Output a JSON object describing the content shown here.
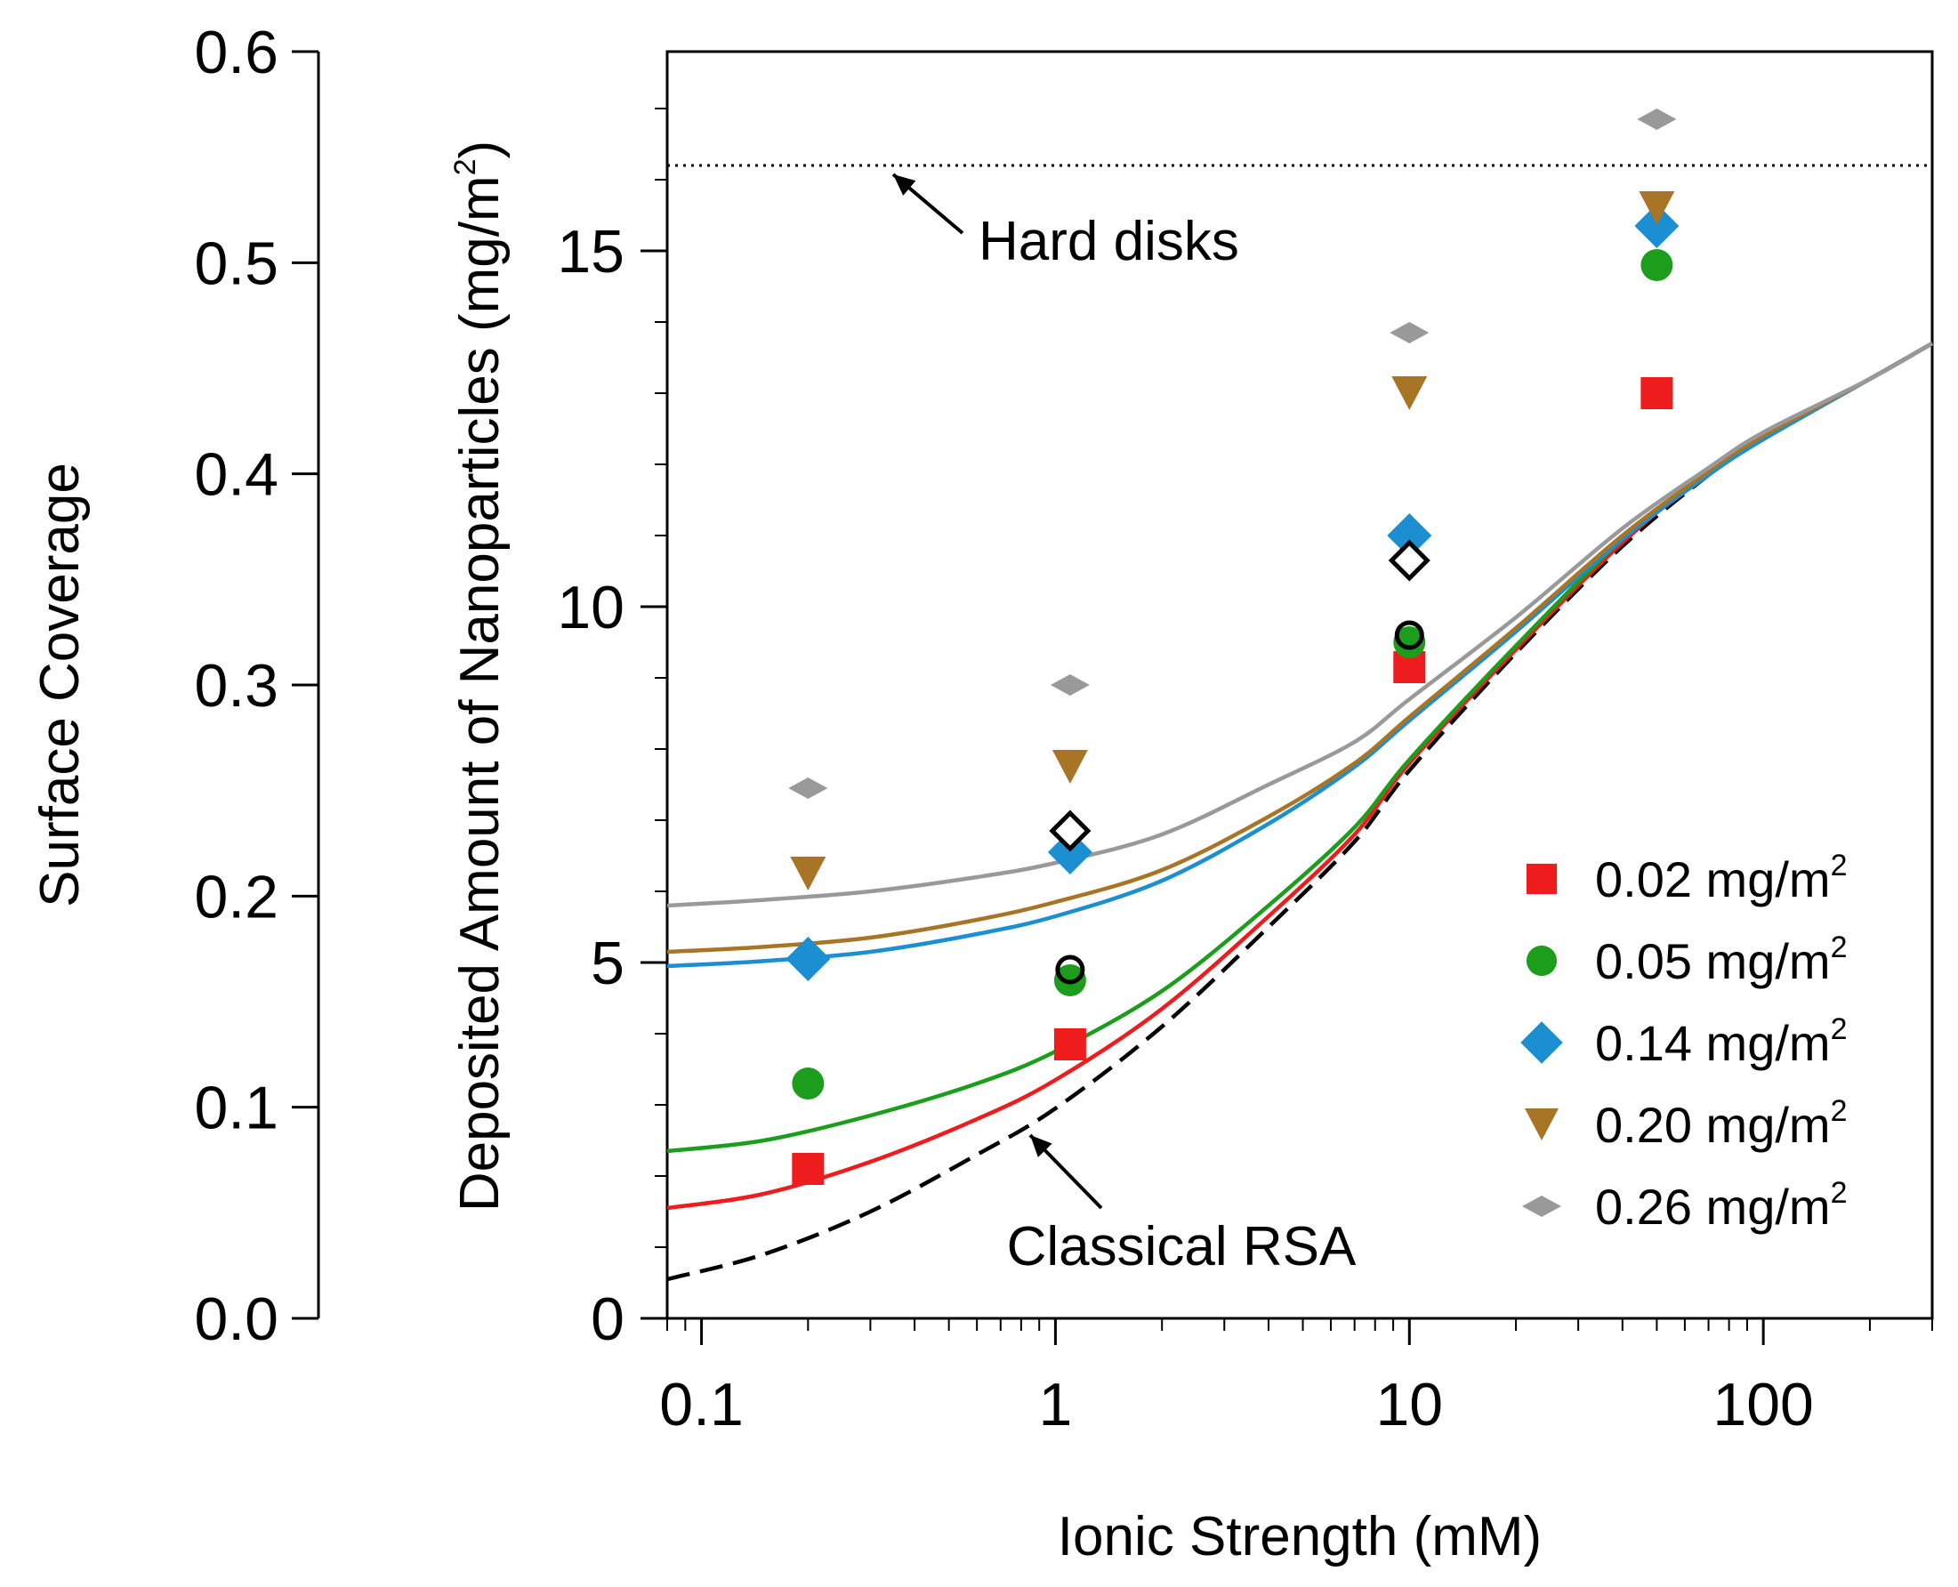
{
  "chart_data": {
    "type": "scatter",
    "title": "",
    "xlabel": "Ionic Strength (mM)",
    "ylabel_main": "Deposited Amount of Nanoparticles (mg/m",
    "ylabel_sup": "2",
    "ylabel_close": ")",
    "ylabel_secondary": "Surface Coverage",
    "x_scale": "log",
    "xlim": [
      0.08,
      300
    ],
    "ylim": [
      0,
      17.8
    ],
    "secondary_ylim": [
      0.0,
      0.6
    ],
    "x_ticks": [
      0.1,
      1,
      10,
      100
    ],
    "x_tick_labels": [
      "0.1",
      "1",
      "10",
      "100"
    ],
    "y_ticks": [
      0,
      5,
      10,
      15
    ],
    "y_tick_labels": [
      "0",
      "5",
      "10",
      "15"
    ],
    "secondary_ticks": [
      0.0,
      0.1,
      0.2,
      0.3,
      0.4,
      0.5,
      0.6
    ],
    "secondary_tick_labels": [
      "0.0",
      "0.1",
      "0.2",
      "0.3",
      "0.4",
      "0.5",
      "0.6"
    ],
    "hard_disk_level": 16.2,
    "annotations": {
      "hard_disks": "Hard disks",
      "classical_rsa": "Classical RSA"
    },
    "series": [
      {
        "name": "0.02 mg/m",
        "sup": "2",
        "marker": "square",
        "color": "#ee1c1c",
        "points": [
          {
            "x": 0.2,
            "y": 2.1
          },
          {
            "x": 1.1,
            "y": 3.85
          },
          {
            "x": 10,
            "y": 9.15
          },
          {
            "x": 50,
            "y": 13.0
          }
        ],
        "curve": [
          [
            0.08,
            1.55
          ],
          [
            0.15,
            1.75
          ],
          [
            0.3,
            2.2
          ],
          [
            0.6,
            2.8
          ],
          [
            1,
            3.35
          ],
          [
            2,
            4.35
          ],
          [
            4,
            5.65
          ],
          [
            7,
            6.8
          ],
          [
            10,
            7.8
          ],
          [
            20,
            9.4
          ],
          [
            40,
            10.9
          ],
          [
            70,
            11.9
          ],
          [
            100,
            12.4
          ],
          [
            200,
            13.2
          ],
          [
            300,
            13.7
          ]
        ]
      },
      {
        "name": "0.05 mg/m",
        "sup": "2",
        "marker": "circle",
        "color": "#1c9e1c",
        "points": [
          {
            "x": 0.2,
            "y": 3.3
          },
          {
            "x": 1.1,
            "y": 4.75
          },
          {
            "x": 10,
            "y": 9.5
          },
          {
            "x": 50,
            "y": 14.8
          }
        ],
        "curve": [
          [
            0.08,
            2.35
          ],
          [
            0.15,
            2.5
          ],
          [
            0.3,
            2.85
          ],
          [
            0.6,
            3.3
          ],
          [
            1,
            3.75
          ],
          [
            2,
            4.6
          ],
          [
            4,
            5.8
          ],
          [
            7,
            6.9
          ],
          [
            10,
            7.85
          ],
          [
            20,
            9.45
          ],
          [
            40,
            10.95
          ],
          [
            70,
            11.9
          ],
          [
            100,
            12.4
          ],
          [
            200,
            13.2
          ],
          [
            300,
            13.7
          ]
        ]
      },
      {
        "name": "0.14 mg/m",
        "sup": "2",
        "marker": "diamond",
        "color": "#1b8fd1",
        "points": [
          {
            "x": 0.2,
            "y": 5.05
          },
          {
            "x": 1.1,
            "y": 6.55
          },
          {
            "x": 10,
            "y": 11.0
          },
          {
            "x": 50,
            "y": 15.35
          }
        ],
        "curve": [
          [
            0.08,
            4.95
          ],
          [
            0.15,
            5.02
          ],
          [
            0.3,
            5.15
          ],
          [
            0.6,
            5.4
          ],
          [
            1,
            5.65
          ],
          [
            2,
            6.15
          ],
          [
            4,
            6.95
          ],
          [
            7,
            7.75
          ],
          [
            10,
            8.4
          ],
          [
            20,
            9.65
          ],
          [
            40,
            10.95
          ],
          [
            70,
            11.85
          ],
          [
            100,
            12.35
          ],
          [
            200,
            13.2
          ],
          [
            300,
            13.7
          ]
        ]
      },
      {
        "name": "0.20 mg/m",
        "sup": "2",
        "marker": "triangle-down",
        "color": "#a87526",
        "points": [
          {
            "x": 0.2,
            "y": 6.25
          },
          {
            "x": 1.1,
            "y": 7.75
          },
          {
            "x": 10,
            "y": 13.0
          },
          {
            "x": 50,
            "y": 15.6
          }
        ],
        "curve": [
          [
            0.08,
            5.15
          ],
          [
            0.15,
            5.22
          ],
          [
            0.3,
            5.35
          ],
          [
            0.6,
            5.6
          ],
          [
            1,
            5.85
          ],
          [
            2,
            6.3
          ],
          [
            4,
            7.05
          ],
          [
            7,
            7.8
          ],
          [
            10,
            8.45
          ],
          [
            20,
            9.7
          ],
          [
            40,
            11.0
          ],
          [
            70,
            11.9
          ],
          [
            100,
            12.4
          ],
          [
            200,
            13.2
          ],
          [
            300,
            13.7
          ]
        ]
      },
      {
        "name": "0.26 mg/m",
        "sup": "2",
        "marker": "flat-diamond",
        "color": "#999999",
        "points": [
          {
            "x": 0.2,
            "y": 7.45
          },
          {
            "x": 1.1,
            "y": 8.9
          },
          {
            "x": 10,
            "y": 13.85
          },
          {
            "x": 50,
            "y": 16.85
          }
        ],
        "curve": [
          [
            0.08,
            5.8
          ],
          [
            0.15,
            5.88
          ],
          [
            0.3,
            6.0
          ],
          [
            0.6,
            6.2
          ],
          [
            1,
            6.4
          ],
          [
            2,
            6.8
          ],
          [
            4,
            7.5
          ],
          [
            7,
            8.1
          ],
          [
            10,
            8.7
          ],
          [
            20,
            9.85
          ],
          [
            40,
            11.1
          ],
          [
            70,
            11.95
          ],
          [
            100,
            12.45
          ],
          [
            200,
            13.2
          ],
          [
            300,
            13.7
          ]
        ]
      }
    ],
    "reference_curve": {
      "name": "Classical RSA",
      "color": "#000000",
      "curve": [
        [
          0.08,
          0.55
        ],
        [
          0.15,
          0.9
        ],
        [
          0.3,
          1.5
        ],
        [
          0.6,
          2.3
        ],
        [
          1,
          2.95
        ],
        [
          2,
          4.1
        ],
        [
          4,
          5.5
        ],
        [
          7,
          6.7
        ],
        [
          10,
          7.7
        ],
        [
          20,
          9.35
        ],
        [
          40,
          10.85
        ],
        [
          70,
          11.85
        ],
        [
          100,
          12.4
        ],
        [
          200,
          13.2
        ],
        [
          300,
          13.7
        ]
      ]
    },
    "open_markers": [
      {
        "marker": "open-circle",
        "x": 1.1,
        "y": 4.9
      },
      {
        "marker": "open-circle",
        "x": 10,
        "y": 9.6
      },
      {
        "marker": "open-diamond",
        "x": 1.1,
        "y": 6.85
      },
      {
        "marker": "open-diamond",
        "x": 10,
        "y": 10.65
      }
    ],
    "legend_position": "bottom-right"
  }
}
